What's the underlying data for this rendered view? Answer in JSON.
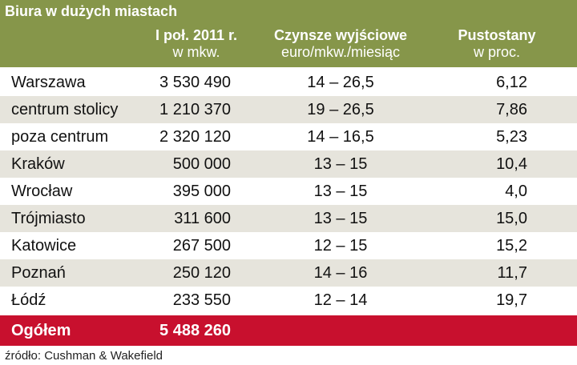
{
  "header": {
    "title": "Biura w dużych miastach",
    "columns": [
      {
        "line1": "I poł. 2011 r.",
        "line2": "w  mkw."
      },
      {
        "line1": "Czynsze wyjściowe",
        "line2": "euro/mkw./miesiąc"
      },
      {
        "line1": "Pustostany",
        "line2": "w  proc."
      }
    ]
  },
  "table": {
    "rows": [
      [
        "Warszawa",
        "3 530 490",
        "14 – 26,5",
        "6,12"
      ],
      [
        "centrum stolicy",
        "1 210 370",
        "19 – 26,5",
        "7,86"
      ],
      [
        "poza centrum",
        "2 320 120",
        "14 – 16,5",
        "5,23"
      ],
      [
        "Kraków",
        "500 000",
        "13 – 15",
        "10,4"
      ],
      [
        "Wrocław",
        "395 000",
        "13 – 15",
        "4,0"
      ],
      [
        "Trójmiasto",
        "311 600",
        "13 – 15",
        "15,0"
      ],
      [
        "Katowice",
        "267 500",
        "12 – 15",
        "15,2"
      ],
      [
        "Poznań",
        "250 120",
        "14 – 16",
        "11,7"
      ],
      [
        "Łódź",
        "233 550",
        "12 – 14",
        "19,7"
      ]
    ],
    "total": [
      "Ogółem",
      "5 488 260"
    ]
  },
  "source": "źródło: Cushman & Wakefield"
}
